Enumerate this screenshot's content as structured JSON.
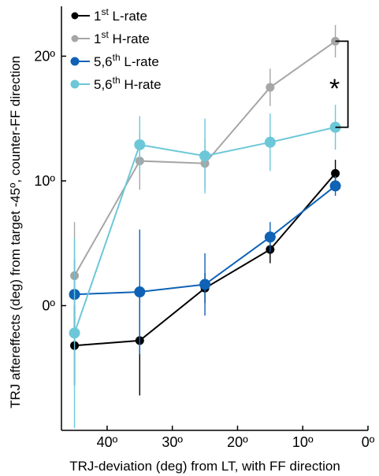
{
  "chart_data": {
    "type": "line",
    "xlabel": "TRJ-deviation  (deg) from LT, with FF direction",
    "ylabel": "TRJ  aftereffects (deg) from target  -45º, counter-FF direction",
    "x": [
      45,
      35,
      25,
      15,
      5
    ],
    "xlim": [
      47,
      0
    ],
    "ylim": [
      -10,
      24
    ],
    "x_ticks": [
      {
        "value": 40,
        "label": "40º"
      },
      {
        "value": 30,
        "label": "30º"
      },
      {
        "value": 20,
        "label": "20º"
      },
      {
        "value": 10,
        "label": "10º"
      },
      {
        "value": 0,
        "label": "0º"
      }
    ],
    "y_ticks": [
      {
        "value": 0,
        "label": "0º"
      },
      {
        "value": 10,
        "label": "10º"
      },
      {
        "value": 20,
        "label": "20º"
      }
    ],
    "legend_position": "top-left",
    "series": [
      {
        "name": "1st L-rate",
        "legend_main": "1",
        "legend_sup": "st",
        "legend_rest": " L-rate",
        "color": "#000000",
        "marker_size": "small",
        "values": [
          -3.2,
          -2.8,
          1.4,
          4.5,
          10.6
        ],
        "errors": [
          3.2,
          4.4,
          1.2,
          1.1,
          1.1
        ]
      },
      {
        "name": "1st H-rate",
        "legend_main": "1",
        "legend_sup": "st",
        "legend_rest": " H-rate",
        "color": "#a6a6a6",
        "marker_size": "small",
        "values": [
          2.4,
          11.6,
          11.4,
          17.5,
          21.2
        ],
        "errors": [
          4.3,
          2.3,
          2.0,
          1.5,
          1.3
        ]
      },
      {
        "name": "5,6th L-rate",
        "legend_main": "5,6",
        "legend_sup": "th",
        "legend_rest": " L-rate",
        "color": "#0f62b5",
        "marker_size": "large",
        "values": [
          0.9,
          1.1,
          1.7,
          5.5,
          9.6
        ],
        "errors": [
          2.8,
          5.0,
          2.5,
          1.2,
          0.8
        ]
      },
      {
        "name": "5,6th H-rate",
        "legend_main": "5,6",
        "legend_sup": "th",
        "legend_rest": " H-rate",
        "color": "#6cc8d8",
        "marker_size": "large",
        "values": [
          -2.2,
          12.9,
          12.0,
          13.1,
          14.3
        ],
        "errors": [
          7.6,
          2.3,
          3.0,
          2.3,
          1.8
        ]
      }
    ],
    "annotation": {
      "text": "*",
      "x_value": 5,
      "y_from": 14.3,
      "y_to": 21.2
    }
  }
}
